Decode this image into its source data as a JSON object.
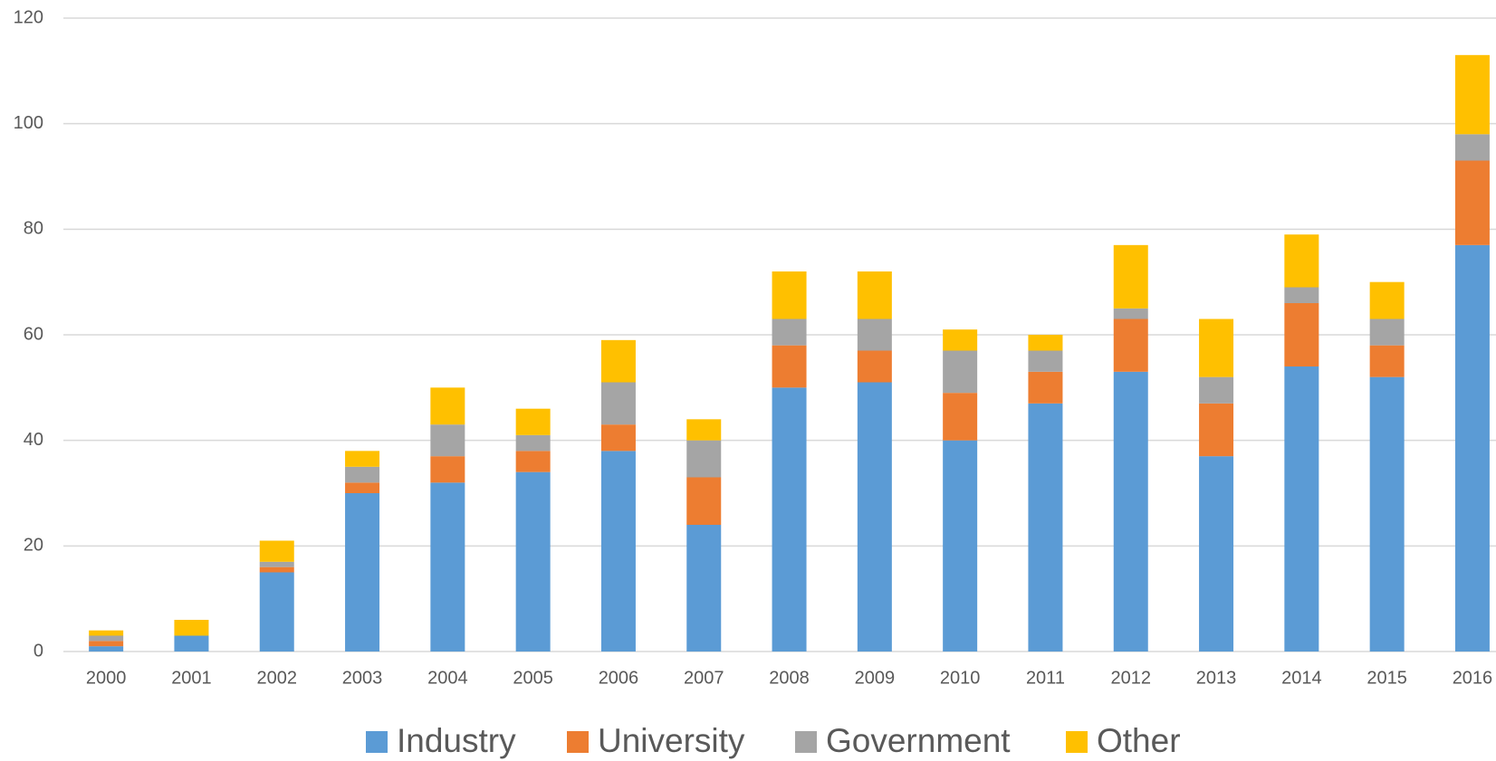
{
  "chart_data": {
    "type": "stacked_bar",
    "categories": [
      "2000",
      "2001",
      "2002",
      "2003",
      "2004",
      "2005",
      "2006",
      "2007",
      "2008",
      "2009",
      "2010",
      "2011",
      "2012",
      "2013",
      "2014",
      "2015",
      "2016"
    ],
    "series": [
      {
        "name": "Industry",
        "color": "#5b9bd5",
        "values": [
          1,
          3,
          15,
          30,
          32,
          34,
          38,
          24,
          50,
          51,
          40,
          47,
          53,
          37,
          54,
          52,
          77
        ]
      },
      {
        "name": "University",
        "color": "#ed7d31",
        "values": [
          1,
          0,
          1,
          2,
          5,
          4,
          5,
          9,
          8,
          6,
          9,
          6,
          10,
          10,
          12,
          6,
          16
        ]
      },
      {
        "name": "Government",
        "color": "#a5a5a5",
        "values": [
          1,
          0,
          1,
          3,
          6,
          3,
          8,
          7,
          5,
          6,
          8,
          4,
          2,
          5,
          3,
          5,
          5
        ]
      },
      {
        "name": "Other",
        "color": "#ffc000",
        "values": [
          1,
          3,
          4,
          3,
          7,
          5,
          8,
          4,
          9,
          9,
          4,
          3,
          12,
          11,
          10,
          7,
          15
        ]
      }
    ],
    "ylim": [
      0,
      120
    ],
    "yticks": [
      0,
      20,
      40,
      60,
      80,
      100,
      120
    ],
    "grid": true,
    "legend": "bottom"
  }
}
